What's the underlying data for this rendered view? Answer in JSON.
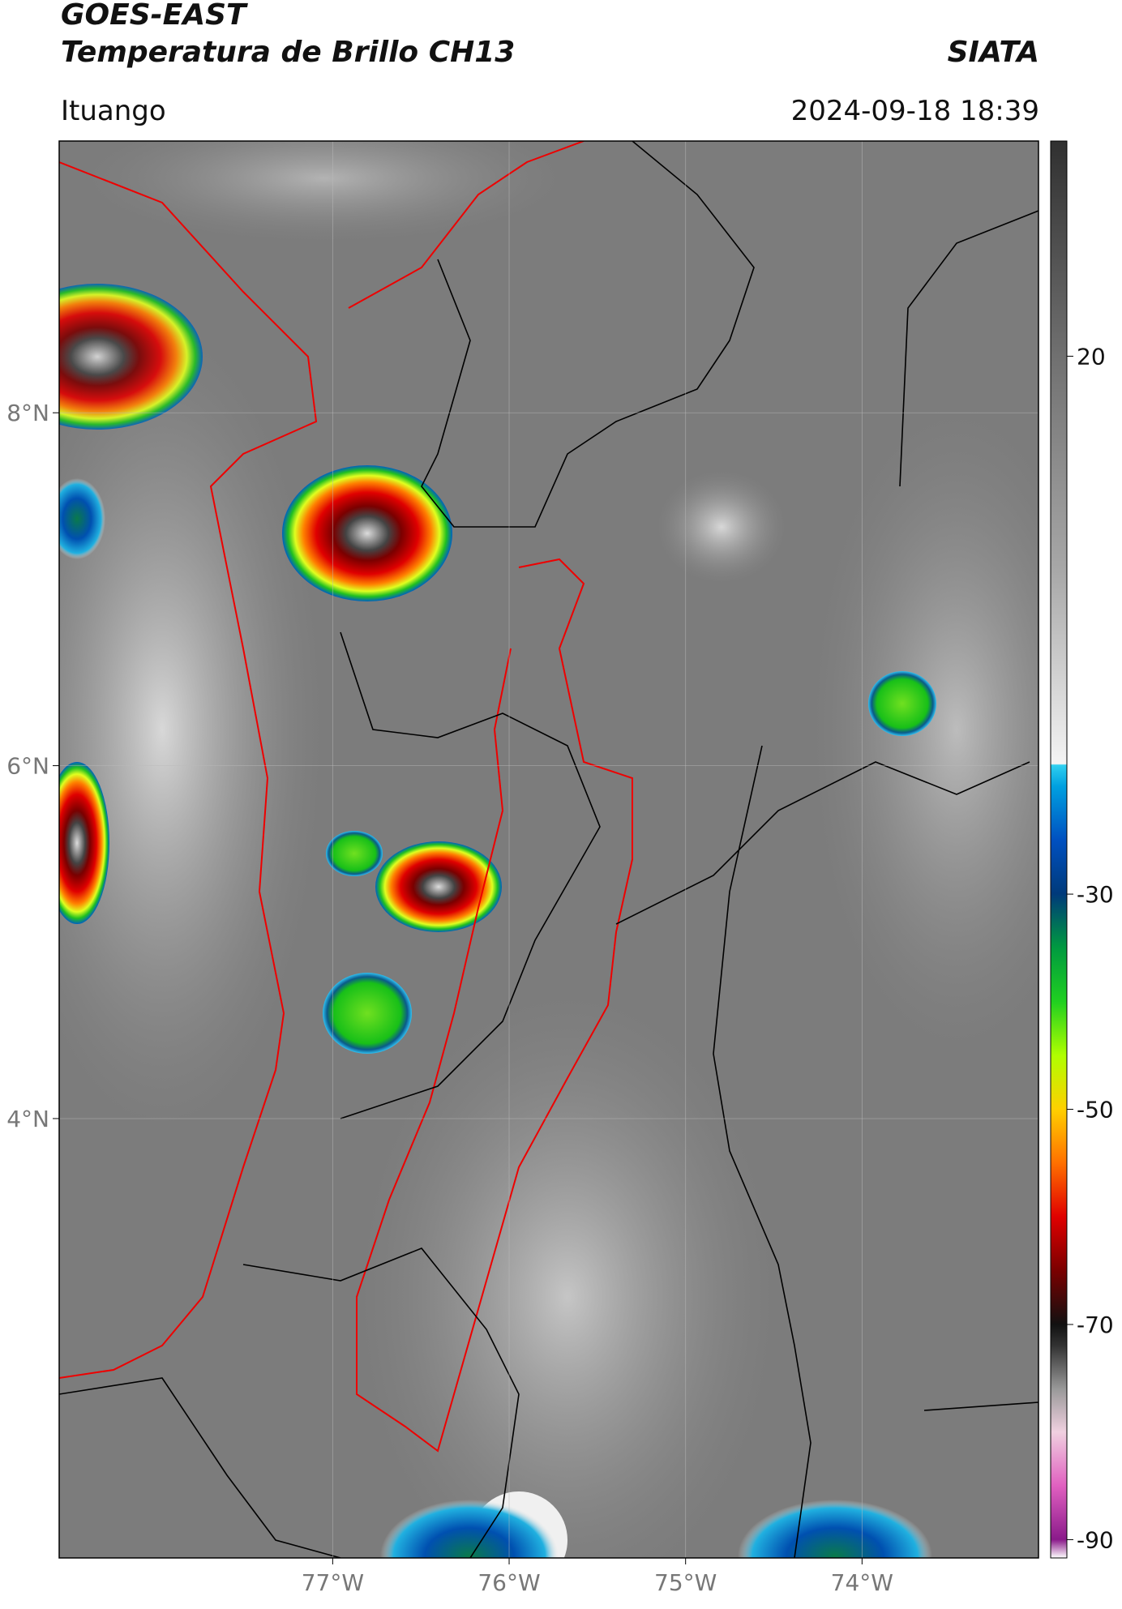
{
  "header": {
    "title_line1": "GOES-EAST",
    "title_line2": "Temperatura de Brillo CH13",
    "source": "SIATA",
    "location": "Ituango",
    "datetime": "2024-09-18 18:39"
  },
  "map": {
    "xlim": [
      -78.55,
      -73.0
    ],
    "ylim": [
      1.51,
      9.54
    ],
    "xticks": [
      {
        "value": -77,
        "label": "77°W"
      },
      {
        "value": -76,
        "label": "76°W"
      },
      {
        "value": -75,
        "label": "75°W"
      },
      {
        "value": -74,
        "label": "74°W"
      }
    ],
    "yticks": [
      {
        "value": 8,
        "label": "8°N"
      },
      {
        "value": 6,
        "label": "6°N"
      },
      {
        "value": 4,
        "label": "4°N"
      }
    ],
    "grid": true
  },
  "colorbar": {
    "lim": [
      -91.7,
      40
    ],
    "ticks": [
      20,
      -30,
      -50,
      -70,
      -90
    ],
    "stops": [
      [
        -91.7,
        "#ffffff"
      ],
      [
        -90,
        "#8a1a8a"
      ],
      [
        -85,
        "#e060c0"
      ],
      [
        -80,
        "#f0d0e0"
      ],
      [
        -76,
        "#999999"
      ],
      [
        -72,
        "#333333"
      ],
      [
        -70,
        "#111111"
      ],
      [
        -65,
        "#7a0000"
      ],
      [
        -60,
        "#e00000"
      ],
      [
        -55,
        "#ff7000"
      ],
      [
        -50,
        "#ffd000"
      ],
      [
        -45,
        "#b0ff00"
      ],
      [
        -40,
        "#20d020"
      ],
      [
        -35,
        "#009a40"
      ],
      [
        -30,
        "#003a7a"
      ],
      [
        -25,
        "#0050c0"
      ],
      [
        -20,
        "#00a0e0"
      ],
      [
        -18,
        "#30d0f0"
      ],
      [
        -17.9,
        "#f4f4f4"
      ],
      [
        0,
        "#a8a8a8"
      ],
      [
        20,
        "#707070"
      ],
      [
        40,
        "#303030"
      ]
    ]
  }
}
